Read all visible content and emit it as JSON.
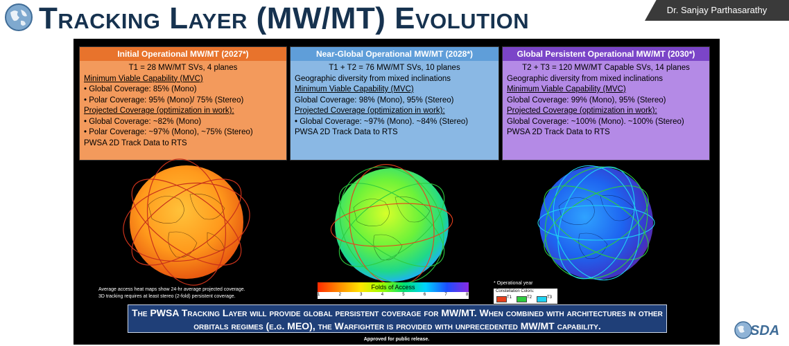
{
  "header": {
    "title": "Tracking Layer (MW/MT) Evolution",
    "presenter": "Dr. Sanjay Parthasarathy"
  },
  "panels": [
    {
      "title": "Initial Operational MW/MT  (2027*)",
      "line1": "T1 = 28 MW/MT SVs, 4 planes",
      "mvc_label": "Minimum Viable Capability (MVC)",
      "mvc_items": [
        "• Global Coverage: 85% (Mono)",
        "• Polar Coverage: 95% (Mono)/ 75% (Stereo)"
      ],
      "proj_label": "Projected Coverage (optimization in work):",
      "proj_items": [
        "• Global Coverage: ~82% (Mono)",
        "• Polar Coverage: ~97% (Mono), ~75% (Stereo)"
      ],
      "footer": "PWSA 2D Track Data to RTS"
    },
    {
      "title": "Near-Global Operational MW/MT (2028*)",
      "line1": "T1 + T2  = 76  MW/MT SVs,  10 planes",
      "line2": "Geographic diversity from mixed inclinations",
      "mvc_label": "Minimum Viable Capability (MVC)",
      "mvc_items": [
        "Global Coverage: 98% (Mono), 95% (Stereo)"
      ],
      "proj_label": "Projected Coverage (optimization in work):",
      "proj_items": [
        "• Global Coverage: ~97% (Mono). ~84% (Stereo)"
      ],
      "footer": "PWSA 2D Track Data to RTS"
    },
    {
      "title": "Global Persistent Operational MW/MT (2030*)",
      "line1": "T2 + T3  = 120 MW/MT Capable SVs, 14 planes",
      "line2": "Geographic diversity from mixed inclinations",
      "mvc_label": "Minimum Viable Capability (MVC)",
      "mvc_items": [
        "Global Coverage: 99% (Mono), 95% (Stereo)"
      ],
      "proj_label": "Projected Coverage (optimization in work):",
      "proj_items": [
        "Global Coverage: ~100% (Mono). ~100% (Stereo)"
      ],
      "footer": "PWSA 2D Track Data to RTS"
    }
  ],
  "note": {
    "line1": "Average access heat maps show 24-hr average projected coverage.",
    "line2": "3D tracking requires at least stereo (2-fold) persistent coverage."
  },
  "legend": {
    "title": "Folds of Access",
    "ticks": [
      "1",
      "2",
      "3",
      "4",
      "5",
      "6",
      "7",
      "8"
    ]
  },
  "operational_note": "* Operational year",
  "constellation": {
    "title": "Constellation Colors:",
    "items": [
      {
        "label": "T1",
        "color": "#e8401c"
      },
      {
        "label": "T2",
        "color": "#2ecc40"
      },
      {
        "label": "T3",
        "color": "#1fd3f2"
      }
    ]
  },
  "banner": {
    "line1": "The PWSA Tracking Layer will provide global persistent coverage for MW/MT. When combined with architectures in other",
    "line2": "orbitals regimes (e.g. MEO), the Warfighter is provided with unprecedented MW/MT capability."
  },
  "approved": "Approved for public release.",
  "logo_text": "SDA",
  "colors": {
    "title": "#16324f",
    "panel1": "#f39a5c",
    "panel2": "#8ab8e4",
    "panel3": "#b48ae6",
    "banner": "#1f3f78"
  }
}
